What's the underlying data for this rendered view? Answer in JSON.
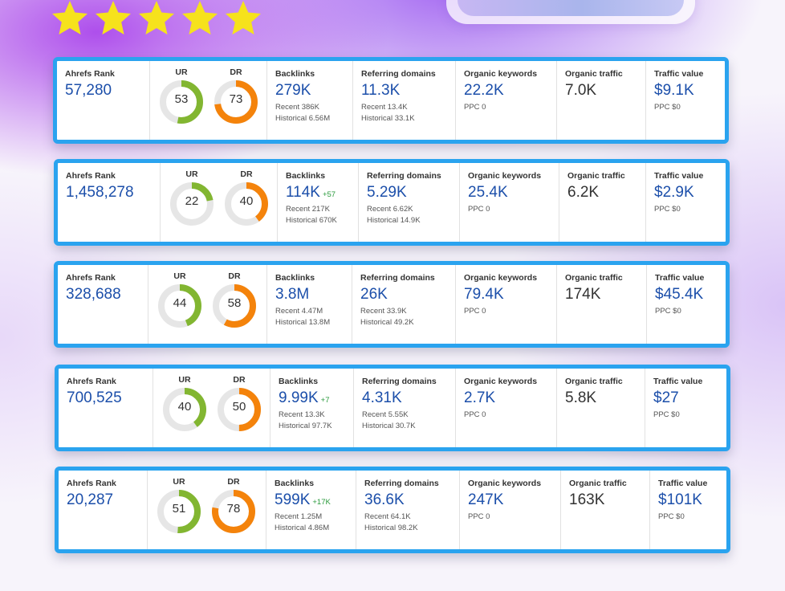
{
  "colors": {
    "ur": "#82b631",
    "dr": "#f4830b",
    "ring_bg": "#e6e6e6",
    "accent": "#2aa3ef",
    "value_blue": "#1c4faa"
  },
  "rating": {
    "stars": 5,
    "icon": "star-icon",
    "color": "#f6e21c"
  },
  "labels": {
    "ahrefs_rank": "Ahrefs Rank",
    "ur": "UR",
    "dr": "DR",
    "backlinks": "Backlinks",
    "referring_domains": "Referring domains",
    "organic_keywords": "Organic keywords",
    "organic_traffic": "Organic traffic",
    "traffic_value": "Traffic value"
  },
  "cards": [
    {
      "ahrefs_rank": "57,280",
      "ur": 53,
      "dr": 73,
      "backlinks": "279K",
      "backlinks_delta": "",
      "bl_recent": "Recent 386K",
      "bl_historical": "Historical 6.56M",
      "ref_domains": "11.3K",
      "rd_recent": "Recent 13.4K",
      "rd_historical": "Historical 33.1K",
      "organic_keywords": "22.2K",
      "ok_ppc": "PPC 0",
      "organic_traffic": "7.0K",
      "traffic_value": "$9.1K",
      "tv_ppc": "PPC $0"
    },
    {
      "ahrefs_rank": "1,458,278",
      "ur": 22,
      "dr": 40,
      "backlinks": "114K",
      "backlinks_delta": "+57",
      "bl_recent": "Recent 217K",
      "bl_historical": "Historical 670K",
      "ref_domains": "5.29K",
      "rd_recent": "Recent 6.62K",
      "rd_historical": "Historical 14.9K",
      "organic_keywords": "25.4K",
      "ok_ppc": "PPC 0",
      "organic_traffic": "6.2K",
      "traffic_value": "$2.9K",
      "tv_ppc": "PPC $0"
    },
    {
      "ahrefs_rank": "328,688",
      "ur": 44,
      "dr": 58,
      "backlinks": "3.8M",
      "backlinks_delta": "",
      "bl_recent": "Recent 4.47M",
      "bl_historical": "Historical 13.8M",
      "ref_domains": "26K",
      "rd_recent": "Recent 33.9K",
      "rd_historical": "Historical 49.2K",
      "organic_keywords": "79.4K",
      "ok_ppc": "PPC 0",
      "organic_traffic": "174K",
      "traffic_value": "$45.4K",
      "tv_ppc": "PPC $0"
    },
    {
      "ahrefs_rank": "700,525",
      "ur": 40,
      "dr": 50,
      "backlinks": "9.99K",
      "backlinks_delta": "+7",
      "bl_recent": "Recent 13.3K",
      "bl_historical": "Historical 97.7K",
      "ref_domains": "4.31K",
      "rd_recent": "Recent 5.55K",
      "rd_historical": "Historical 30.7K",
      "organic_keywords": "2.7K",
      "ok_ppc": "PPC 0",
      "organic_traffic": "5.8K",
      "traffic_value": "$27",
      "tv_ppc": "PPC $0"
    },
    {
      "ahrefs_rank": "20,287",
      "ur": 51,
      "dr": 78,
      "backlinks": "599K",
      "backlinks_delta": "+17K",
      "bl_recent": "Recent 1.25M",
      "bl_historical": "Historical 4.86M",
      "ref_domains": "36.6K",
      "rd_recent": "Recent 64.1K",
      "rd_historical": "Historical 98.2K",
      "organic_keywords": "247K",
      "ok_ppc": "PPC 0",
      "organic_traffic": "163K",
      "traffic_value": "$101K",
      "tv_ppc": "PPC $0"
    }
  ]
}
